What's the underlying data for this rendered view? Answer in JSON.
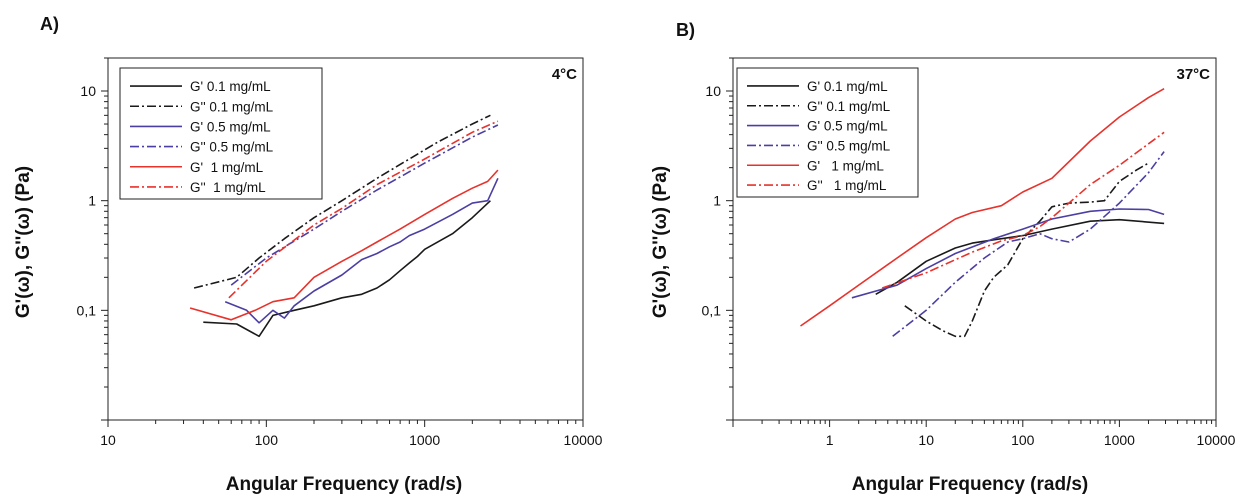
{
  "chart_data": [
    {
      "panel": "A)",
      "type": "line",
      "annotation": "4°C",
      "xlabel": "Angular Frequency (rad/s)",
      "ylabel": "G'(ω), G''(ω) (Pa)",
      "xscale": "log",
      "yscale": "log",
      "xlim": [
        10,
        10000
      ],
      "ylim": [
        0.01,
        20
      ],
      "xticks": [
        "10",
        "100",
        "1000",
        "10000"
      ],
      "yticks": [
        "0,1",
        "1",
        "10"
      ],
      "legend_position": "top-left",
      "series": [
        {
          "name": "G' 0.1 mg/mL",
          "color": "#1a1a1a",
          "dash": "solid",
          "x": [
            40,
            65,
            90,
            110,
            150,
            200,
            300,
            400,
            500,
            600,
            700,
            800,
            900,
            1000,
            1500,
            2000,
            2600
          ],
          "y": [
            0.078,
            0.075,
            0.058,
            0.09,
            0.1,
            0.11,
            0.13,
            0.14,
            0.16,
            0.19,
            0.23,
            0.27,
            0.31,
            0.36,
            0.5,
            0.7,
            1.0
          ]
        },
        {
          "name": "G'' 0.1 mg/mL",
          "color": "#1a1a1a",
          "dash": "dashdot",
          "x": [
            35,
            65,
            90,
            130,
            200,
            300,
            500,
            800,
            1200,
            2000,
            2600
          ],
          "y": [
            0.16,
            0.2,
            0.3,
            0.45,
            0.7,
            1.0,
            1.6,
            2.4,
            3.4,
            5.0,
            6.0
          ]
        },
        {
          "name": "G' 0.5 mg/mL",
          "color": "#4b3fa3",
          "dash": "solid",
          "x": [
            55,
            75,
            90,
            110,
            130,
            150,
            200,
            300,
            400,
            500,
            600,
            700,
            800,
            1000,
            1500,
            2000,
            2500,
            2900
          ],
          "y": [
            0.12,
            0.1,
            0.077,
            0.1,
            0.085,
            0.11,
            0.15,
            0.21,
            0.29,
            0.33,
            0.38,
            0.42,
            0.48,
            0.55,
            0.75,
            0.95,
            1.0,
            1.6
          ]
        },
        {
          "name": "G'' 0.5 mg/mL",
          "color": "#4b3fa3",
          "dash": "dashdot",
          "x": [
            60,
            100,
            200,
            300,
            500,
            1000,
            2000,
            2900
          ],
          "y": [
            0.17,
            0.3,
            0.55,
            0.8,
            1.25,
            2.2,
            3.8,
            4.9
          ]
        },
        {
          "name": "G'  1 mg/mL",
          "color": "#e8322c",
          "dash": "solid",
          "x": [
            33,
            60,
            85,
            110,
            150,
            200,
            300,
            400,
            500,
            700,
            1000,
            1500,
            2000,
            2500,
            2900
          ],
          "y": [
            0.105,
            0.082,
            0.1,
            0.12,
            0.13,
            0.2,
            0.28,
            0.35,
            0.42,
            0.55,
            0.75,
            1.05,
            1.3,
            1.5,
            1.9
          ]
        },
        {
          "name": "G''  1 mg/mL",
          "color": "#e8322c",
          "dash": "dashdot",
          "x": [
            58,
            100,
            200,
            300,
            500,
            1000,
            2000,
            2900
          ],
          "y": [
            0.13,
            0.28,
            0.6,
            0.85,
            1.4,
            2.4,
            4.2,
            5.3
          ]
        }
      ]
    },
    {
      "panel": "B)",
      "type": "line",
      "annotation": "37°C",
      "xlabel": "Angular Frequency (rad/s)",
      "ylabel": "G'(ω), G''(ω) (Pa)",
      "xscale": "log",
      "yscale": "log",
      "xlim": [
        0.1,
        10000
      ],
      "ylim": [
        0.01,
        20
      ],
      "xticks": [
        "1",
        "10",
        "100",
        "1000",
        "10000"
      ],
      "yticks": [
        "0,1",
        "1",
        "10"
      ],
      "legend_position": "top-left",
      "series": [
        {
          "name": "G' 0.1 mg/mL",
          "color": "#1a1a1a",
          "dash": "solid",
          "x": [
            3,
            5,
            10,
            20,
            30,
            50,
            100,
            200,
            500,
            1000,
            2900
          ],
          "y": [
            0.14,
            0.18,
            0.28,
            0.37,
            0.41,
            0.44,
            0.48,
            0.55,
            0.65,
            0.67,
            0.62
          ]
        },
        {
          "name": "G'' 0.1 mg/mL",
          "color": "#1a1a1a",
          "dash": "dashdot",
          "x": [
            6,
            10,
            15,
            20,
            25,
            30,
            40,
            50,
            70,
            100,
            150,
            200,
            300,
            500,
            700,
            1000,
            1500,
            2000
          ],
          "y": [
            0.11,
            0.08,
            0.065,
            0.058,
            0.058,
            0.08,
            0.15,
            0.2,
            0.26,
            0.45,
            0.65,
            0.88,
            0.95,
            0.97,
            1.0,
            1.5,
            1.9,
            2.2
          ]
        },
        {
          "name": "G' 0.5 mg/mL",
          "color": "#4b3fa3",
          "dash": "solid",
          "x": [
            1.7,
            5,
            10,
            20,
            50,
            100,
            200,
            500,
            1000,
            2000,
            2900
          ],
          "y": [
            0.13,
            0.17,
            0.24,
            0.33,
            0.45,
            0.55,
            0.68,
            0.8,
            0.84,
            0.83,
            0.75
          ]
        },
        {
          "name": "G'' 0.5 mg/mL",
          "color": "#4b3fa3",
          "dash": "dashdot",
          "x": [
            4.5,
            10,
            20,
            40,
            70,
            100,
            150,
            200,
            300,
            500,
            1000,
            2000,
            2900
          ],
          "y": [
            0.058,
            0.1,
            0.18,
            0.3,
            0.42,
            0.45,
            0.5,
            0.45,
            0.42,
            0.55,
            0.95,
            1.8,
            2.8
          ]
        },
        {
          "name": "G'   1 mg/mL",
          "color": "#e8322c",
          "dash": "solid",
          "x": [
            0.5,
            1,
            2,
            5,
            10,
            20,
            30,
            60,
            100,
            200,
            500,
            1000,
            2000,
            2900
          ],
          "y": [
            0.072,
            0.11,
            0.17,
            0.3,
            0.46,
            0.68,
            0.78,
            0.9,
            1.2,
            1.6,
            3.5,
            5.8,
            8.7,
            10.5
          ]
        },
        {
          "name": "G''   1 mg/mL",
          "color": "#e8322c",
          "dash": "dashdot",
          "x": [
            3.5,
            10,
            30,
            60,
            100,
            150,
            200,
            300,
            500,
            1000,
            2000,
            2900
          ],
          "y": [
            0.16,
            0.22,
            0.34,
            0.43,
            0.48,
            0.58,
            0.7,
            0.95,
            1.4,
            2.1,
            3.3,
            4.2
          ]
        }
      ]
    }
  ]
}
